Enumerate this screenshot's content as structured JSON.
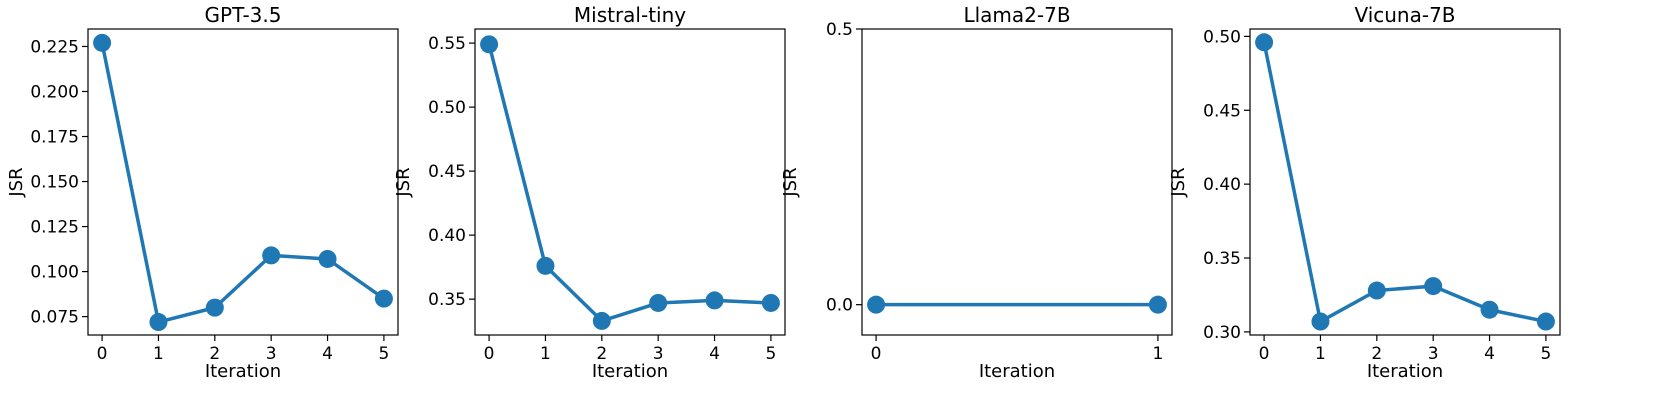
{
  "chart_data": [
    {
      "type": "line",
      "title": "GPT-3.5",
      "xlabel": "Iteration",
      "ylabel": "JSR",
      "xlim": [
        -0.25,
        5.25
      ],
      "ylim": [
        0.0648,
        0.2347
      ],
      "xticks": [
        0,
        1,
        2,
        3,
        4,
        5
      ],
      "xtick_labels": [
        "0",
        "1",
        "2",
        "3",
        "4",
        "5"
      ],
      "yticks": [
        0.075,
        0.1,
        0.125,
        0.15,
        0.175,
        0.2,
        0.225
      ],
      "ytick_labels": [
        "0.075",
        "0.100",
        "0.125",
        "0.150",
        "0.175",
        "0.200",
        "0.225"
      ],
      "grid": false,
      "series": [
        {
          "color": "#1f77b4",
          "x": [
            0,
            1,
            2,
            3,
            4,
            5
          ],
          "values": [
            0.227,
            0.072,
            0.08,
            0.109,
            0.107,
            0.085
          ]
        }
      ]
    },
    {
      "type": "line",
      "title": "Mistral-tiny",
      "xlabel": "Iteration",
      "ylabel": "JSR",
      "xlim": [
        -0.25,
        5.25
      ],
      "ylim": [
        0.322,
        0.561
      ],
      "xticks": [
        0,
        1,
        2,
        3,
        4,
        5
      ],
      "xtick_labels": [
        "0",
        "1",
        "2",
        "3",
        "4",
        "5"
      ],
      "yticks": [
        0.35,
        0.4,
        0.45,
        0.5,
        0.55
      ],
      "ytick_labels": [
        "0.35",
        "0.40",
        "0.45",
        "0.50",
        "0.55"
      ],
      "grid": false,
      "series": [
        {
          "color": "#1f77b4",
          "x": [
            0,
            1,
            2,
            3,
            4,
            5
          ],
          "values": [
            0.549,
            0.376,
            0.333,
            0.347,
            0.349,
            0.347
          ]
        }
      ]
    },
    {
      "type": "line",
      "title": "Llama2-7B",
      "xlabel": "Iteration",
      "ylabel": "JSR",
      "xlim": [
        -0.05,
        1.05
      ],
      "ylim": [
        -0.055,
        0.5
      ],
      "xticks": [
        0,
        1
      ],
      "xtick_labels": [
        "0",
        "1"
      ],
      "yticks": [
        0.0,
        0.5
      ],
      "ytick_labels": [
        "0.0",
        "0.5"
      ],
      "grid": false,
      "series": [
        {
          "color": "#1f77b4",
          "x": [
            0,
            1
          ],
          "values": [
            0.0,
            0.0
          ]
        }
      ]
    },
    {
      "type": "line",
      "title": "Vicuna-7B",
      "xlabel": "Iteration",
      "ylabel": "JSR",
      "xlim": [
        -0.25,
        5.25
      ],
      "ylim": [
        0.2979,
        0.505
      ],
      "xticks": [
        0,
        1,
        2,
        3,
        4,
        5
      ],
      "xtick_labels": [
        "0",
        "1",
        "2",
        "3",
        "4",
        "5"
      ],
      "yticks": [
        0.3,
        0.35,
        0.4,
        0.45,
        0.5
      ],
      "ytick_labels": [
        "0.30",
        "0.35",
        "0.40",
        "0.45",
        "0.50"
      ],
      "grid": false,
      "series": [
        {
          "color": "#1f77b4",
          "x": [
            0,
            1,
            2,
            3,
            4,
            5
          ],
          "values": [
            0.496,
            0.307,
            0.328,
            0.331,
            0.315,
            0.307
          ]
        }
      ]
    }
  ]
}
